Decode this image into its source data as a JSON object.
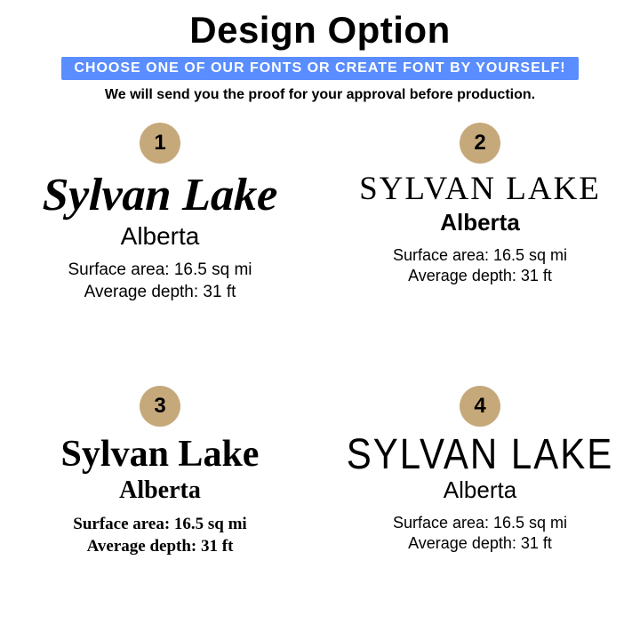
{
  "header": {
    "title": "Design Option",
    "banner": "CHOOSE ONE OF OUR FONTS OR CREATE FONT BY YOURSELF!",
    "subtitle": "We will send you the proof for your approval before production."
  },
  "colors": {
    "badge_bg": "#c6a97b",
    "banner_bg": "#5a8dff",
    "banner_text": "#ffffff",
    "page_bg": "#ffffff",
    "text": "#000000"
  },
  "options": [
    {
      "number": "1",
      "lake_name": "Sylvan Lake",
      "region": "Alberta",
      "surface_area": "Surface area: 16.5 sq mi",
      "avg_depth": "Average depth: 31 ft",
      "font_style": "brush-script"
    },
    {
      "number": "2",
      "lake_name": "SYLVAN LAKE",
      "region": "Alberta",
      "surface_area": "Surface area: 16.5 sq mi",
      "avg_depth": "Average depth: 31 ft",
      "font_style": "serif-caps"
    },
    {
      "number": "3",
      "lake_name": "Sylvan Lake",
      "region": "Alberta",
      "surface_area": "Surface area: 16.5 sq mi",
      "avg_depth": "Average depth: 31 ft",
      "font_style": "rounded-casual"
    },
    {
      "number": "4",
      "lake_name": "SYLVAN LAKE",
      "region": "Alberta",
      "surface_area": "Surface area: 16.5 sq mi",
      "avg_depth": "Average depth: 31 ft",
      "font_style": "art-deco-condensed"
    }
  ]
}
